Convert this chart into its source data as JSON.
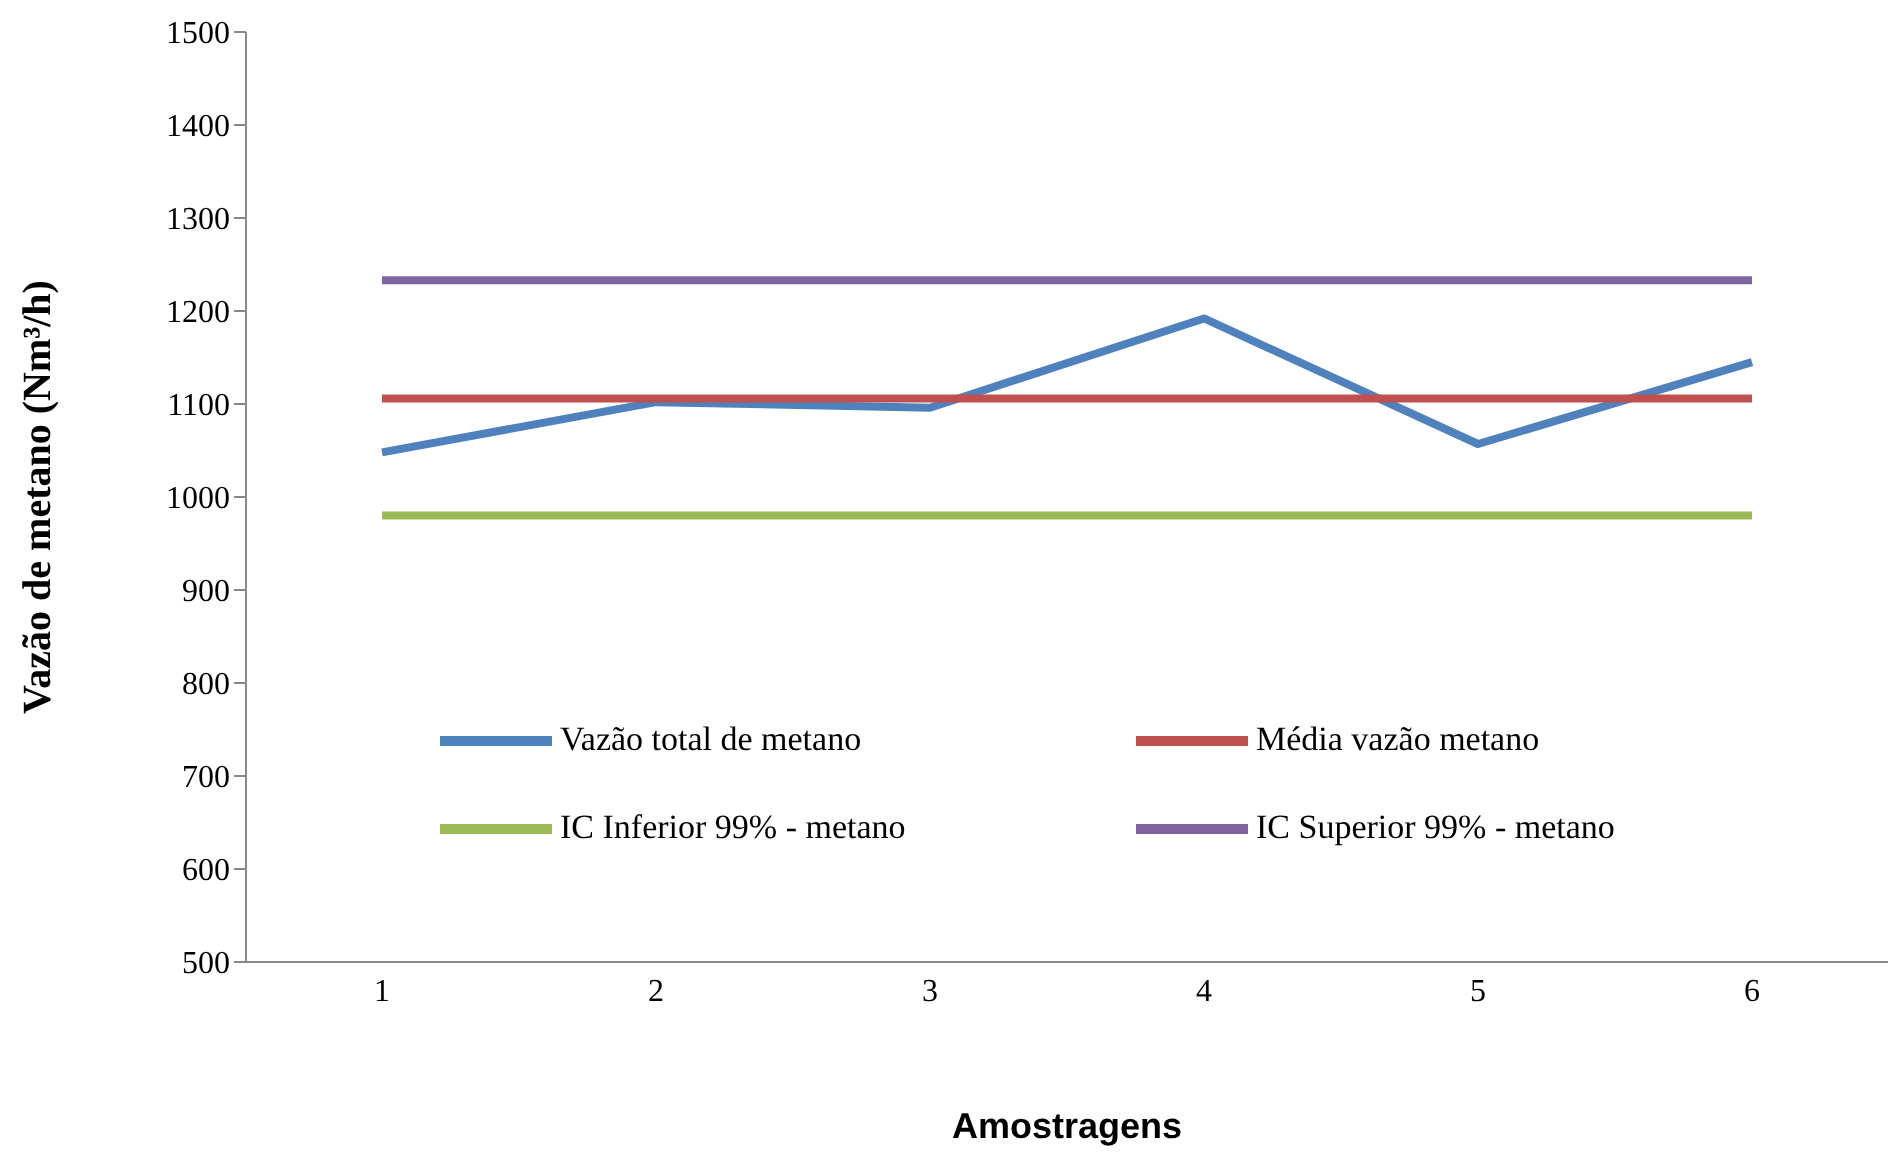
{
  "chart_data": {
    "type": "line",
    "xlabel": "Amostragens",
    "ylabel": "Vazão de metano (Nm³/h)",
    "categories": [
      "1",
      "2",
      "3",
      "4",
      "5",
      "6"
    ],
    "series": [
      {
        "name": "Vazão total de metano",
        "color": "#4f81bd",
        "values": [
          1048,
          1102,
          1096,
          1192,
          1057,
          1145
        ]
      },
      {
        "name": "Média vazão metano",
        "color": "#c0504d",
        "values": [
          1106,
          1106,
          1106,
          1106,
          1106,
          1106
        ]
      },
      {
        "name": "IC Inferior 99% - metano",
        "color": "#9bbb59",
        "values": [
          980,
          980,
          980,
          980,
          980,
          980
        ]
      },
      {
        "name": "IC Superior 99% - metano",
        "color": "#8064a2",
        "values": [
          1233,
          1233,
          1233,
          1233,
          1233,
          1233
        ]
      }
    ],
    "ylim": [
      500,
      1500
    ],
    "yticks": [
      500,
      600,
      700,
      800,
      900,
      1000,
      1100,
      1200,
      1300,
      1400,
      1500
    ],
    "grid": false,
    "legend": "bottom",
    "marker": "none",
    "line_style": "solid"
  }
}
